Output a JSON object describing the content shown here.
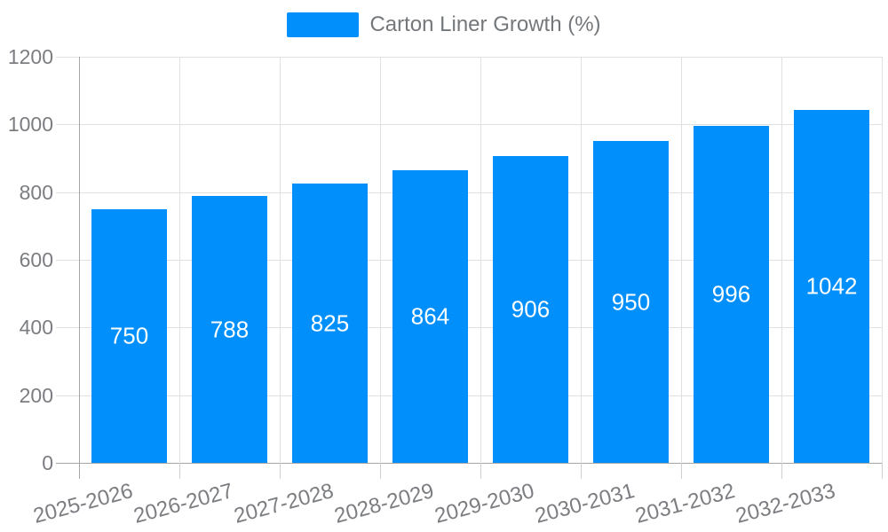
{
  "legend": {
    "label": "Carton Liner Growth (%)",
    "swatch_color": "#008FFB"
  },
  "chart_data": {
    "type": "bar",
    "title": "",
    "xlabel": "",
    "ylabel": "",
    "categories": [
      "2025-2026",
      "2026-2027",
      "2027-2028",
      "2028-2029",
      "2029-2030",
      "2030-2031",
      "2031-2032",
      "2032-2033"
    ],
    "series": [
      {
        "name": "Carton Liner Growth (%)",
        "values": [
          750,
          788,
          825,
          864,
          906,
          950,
          996,
          1042
        ],
        "color": "#008FFB"
      }
    ],
    "data_labels": [
      "750",
      "788",
      "825",
      "864",
      "906",
      "950",
      "996",
      "1042"
    ],
    "ylim": [
      0,
      1200
    ],
    "yticks": [
      0,
      200,
      400,
      600,
      800,
      1000,
      1200
    ],
    "grid": true,
    "legend_position": "top",
    "x_label_rotation_deg": -15,
    "colors": {
      "bar": "#008FFB",
      "grid_line": "#e0e0e0",
      "axis_line": "#a6a6a6",
      "tick_line": "#cfcfcf",
      "axis_text": "#7b7d80",
      "legend_text": "#75787b",
      "data_label_text": "#ffffff"
    }
  }
}
